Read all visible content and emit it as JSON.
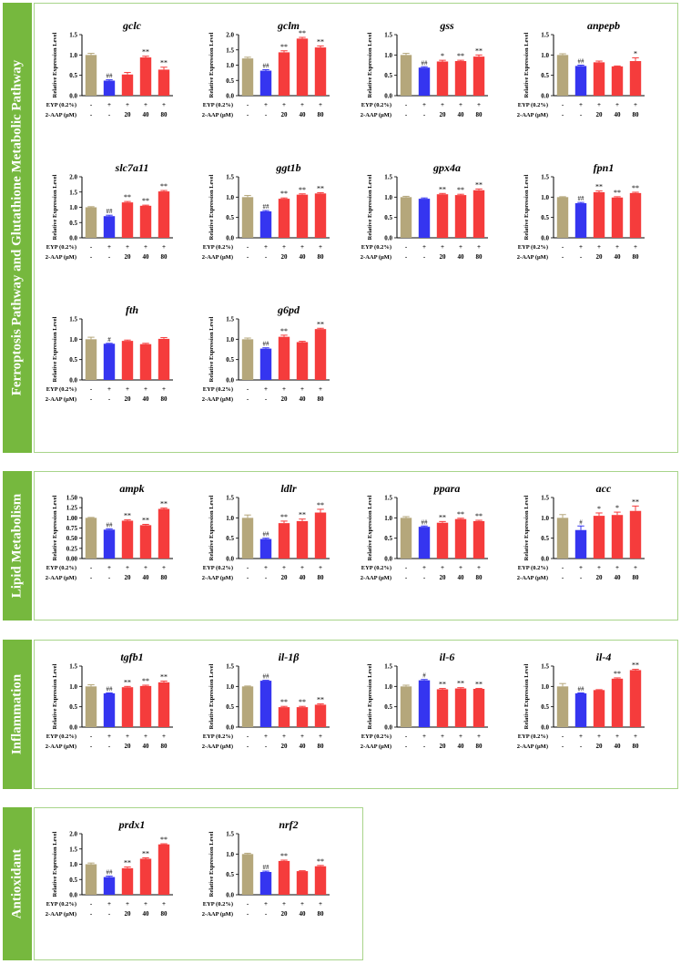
{
  "sections": [
    {
      "key": "ferro",
      "label": "Ferroptosis Pathway and Glutathione Metabolic Pathway"
    },
    {
      "key": "lipid",
      "label": "Lipid Metabolism"
    },
    {
      "key": "inflam",
      "label": "Inflammation"
    },
    {
      "key": "anti",
      "label": "Antioxidant"
    }
  ],
  "colors": {
    "control": "#b5a77b",
    "model": "#3535f0",
    "treat": "#f53c3c",
    "sidebar": "#76b83e",
    "frame": "#a8d48a"
  },
  "common": {
    "ylabel": "Relative Expression Level",
    "row1_label": "EYP (0.2%)",
    "row2_label": "2-AAP (μM)",
    "row1": [
      "-",
      "+",
      "+",
      "+",
      "+"
    ],
    "row2": [
      "-",
      "-",
      "20",
      "40",
      "80"
    ]
  },
  "chart_data": [
    {
      "type": "bar",
      "section": "ferro",
      "title": "gclc",
      "ylim": [
        0,
        1.5
      ],
      "yticks": [
        "0.0",
        "0.5",
        "1.0",
        "1.5"
      ],
      "values": [
        1.0,
        0.37,
        0.52,
        0.94,
        0.64
      ],
      "errors": [
        0.04,
        0.02,
        0.05,
        0.03,
        0.06
      ],
      "marks": [
        "",
        "##",
        "",
        "**",
        "**"
      ]
    },
    {
      "type": "bar",
      "section": "ferro",
      "title": "gclm",
      "ylim": [
        0,
        2.0
      ],
      "yticks": [
        "0.0",
        "0.5",
        "1.0",
        "1.5",
        "2.0"
      ],
      "values": [
        1.22,
        0.82,
        1.42,
        1.87,
        1.58
      ],
      "errors": [
        0.04,
        0.03,
        0.05,
        0.04,
        0.05
      ],
      "marks": [
        "",
        "##",
        "**",
        "**",
        "**"
      ]
    },
    {
      "type": "bar",
      "section": "ferro",
      "title": "gss",
      "ylim": [
        0,
        1.5
      ],
      "yticks": [
        "0.0",
        "0.5",
        "1.0",
        "1.5"
      ],
      "values": [
        1.0,
        0.69,
        0.84,
        0.85,
        0.96
      ],
      "errors": [
        0.04,
        0.02,
        0.03,
        0.02,
        0.04
      ],
      "marks": [
        "",
        "##",
        "*",
        "**",
        "**"
      ]
    },
    {
      "type": "bar",
      "section": "ferro",
      "title": "anpepb",
      "ylim": [
        0,
        1.5
      ],
      "yticks": [
        "0.0",
        "0.5",
        "1.0",
        "1.5"
      ],
      "values": [
        1.0,
        0.73,
        0.82,
        0.72,
        0.85
      ],
      "errors": [
        0.03,
        0.02,
        0.03,
        0.01,
        0.08
      ],
      "marks": [
        "",
        "##",
        "",
        "",
        "*"
      ]
    },
    {
      "type": "bar",
      "section": "ferro",
      "title": "slc7a11",
      "ylim": [
        0,
        2.0
      ],
      "yticks": [
        "0.0",
        "0.5",
        "1.0",
        "1.5",
        "2.0"
      ],
      "values": [
        1.0,
        0.71,
        1.16,
        1.05,
        1.52
      ],
      "errors": [
        0.02,
        0.03,
        0.03,
        0.02,
        0.03
      ],
      "marks": [
        "",
        "##",
        "**",
        "**",
        "**"
      ]
    },
    {
      "type": "bar",
      "section": "ferro",
      "title": "ggt1b",
      "ylim": [
        0,
        1.5
      ],
      "yticks": [
        "0.0",
        "0.5",
        "1.0",
        "1.5"
      ],
      "values": [
        1.0,
        0.65,
        0.96,
        1.06,
        1.09
      ],
      "errors": [
        0.04,
        0.02,
        0.02,
        0.02,
        0.02
      ],
      "marks": [
        "",
        "##",
        "**",
        "**",
        "**"
      ]
    },
    {
      "type": "bar",
      "section": "ferro",
      "title": "gpx4a",
      "ylim": [
        0,
        1.5
      ],
      "yticks": [
        "0.0",
        "0.5",
        "1.0",
        "1.5"
      ],
      "values": [
        1.0,
        0.96,
        1.07,
        1.05,
        1.17
      ],
      "errors": [
        0.02,
        0.02,
        0.02,
        0.02,
        0.03
      ],
      "marks": [
        "",
        "",
        "**",
        "**",
        "**"
      ]
    },
    {
      "type": "bar",
      "section": "ferro",
      "title": "fpn1",
      "ylim": [
        0,
        1.5
      ],
      "yticks": [
        "0.0",
        "0.5",
        "1.0",
        "1.5"
      ],
      "values": [
        1.0,
        0.85,
        1.12,
        0.99,
        1.1
      ],
      "errors": [
        0.01,
        0.02,
        0.03,
        0.02,
        0.02
      ],
      "marks": [
        "",
        "##",
        "**",
        "**",
        "**"
      ]
    },
    {
      "type": "bar",
      "section": "ferro",
      "title": "fth",
      "ylim": [
        0,
        1.5
      ],
      "yticks": [
        "0.0",
        "0.5",
        "1.0",
        "1.5"
      ],
      "values": [
        1.0,
        0.89,
        0.96,
        0.88,
        1.01
      ],
      "errors": [
        0.05,
        0.01,
        0.02,
        0.02,
        0.03
      ],
      "marks": [
        "",
        "#",
        "",
        "",
        ""
      ]
    },
    {
      "type": "bar",
      "section": "ferro",
      "title": "g6pd",
      "ylim": [
        0,
        1.5
      ],
      "yticks": [
        "0.0",
        "0.5",
        "1.0",
        "1.5"
      ],
      "values": [
        1.0,
        0.77,
        1.06,
        0.93,
        1.25
      ],
      "errors": [
        0.03,
        0.02,
        0.04,
        0.02,
        0.02
      ],
      "marks": [
        "",
        "##",
        "**",
        "",
        "**"
      ]
    },
    {
      "type": "bar",
      "section": "lipid",
      "title": "ampk",
      "ylim": [
        0,
        1.5
      ],
      "yticks": [
        "0.00",
        "0.25",
        "0.50",
        "0.75",
        "1.00",
        "1.25",
        "1.50"
      ],
      "values": [
        1.0,
        0.71,
        0.93,
        0.82,
        1.22
      ],
      "errors": [
        0.01,
        0.02,
        0.02,
        0.02,
        0.02
      ],
      "marks": [
        "",
        "##",
        "**",
        "**",
        "**"
      ]
    },
    {
      "type": "bar",
      "section": "lipid",
      "title": "ldlr",
      "ylim": [
        0,
        1.5
      ],
      "yticks": [
        "0.0",
        "0.5",
        "1.0",
        "1.5"
      ],
      "values": [
        1.0,
        0.48,
        0.87,
        0.92,
        1.13
      ],
      "errors": [
        0.07,
        0.02,
        0.05,
        0.05,
        0.08
      ],
      "marks": [
        "",
        "##",
        "**",
        "**",
        "**"
      ]
    },
    {
      "type": "bar",
      "section": "lipid",
      "title": "ppara",
      "ylim": [
        0,
        1.5
      ],
      "yticks": [
        "0.0",
        "0.5",
        "1.0",
        "1.5"
      ],
      "values": [
        1.0,
        0.78,
        0.88,
        0.97,
        0.92
      ],
      "errors": [
        0.03,
        0.02,
        0.03,
        0.02,
        0.02
      ],
      "marks": [
        "",
        "##",
        "**",
        "**",
        "**"
      ]
    },
    {
      "type": "bar",
      "section": "lipid",
      "title": "acc",
      "ylim": [
        0,
        1.5
      ],
      "yticks": [
        "0.0",
        "0.5",
        "1.0",
        "1.5"
      ],
      "values": [
        1.0,
        0.7,
        1.05,
        1.07,
        1.17
      ],
      "errors": [
        0.08,
        0.1,
        0.07,
        0.07,
        0.12
      ],
      "marks": [
        "",
        "#",
        "*",
        "*",
        "**"
      ]
    },
    {
      "type": "bar",
      "section": "inflam",
      "title": "tgfb1",
      "ylim": [
        0,
        1.5
      ],
      "yticks": [
        "0.0",
        "0.5",
        "1.0",
        "1.5"
      ],
      "values": [
        1.0,
        0.83,
        0.98,
        1.01,
        1.1
      ],
      "errors": [
        0.04,
        0.01,
        0.02,
        0.02,
        0.03
      ],
      "marks": [
        "",
        "##",
        "**",
        "**",
        "**"
      ]
    },
    {
      "type": "bar",
      "section": "inflam",
      "title": "il-1β",
      "ylim": [
        0,
        1.5
      ],
      "yticks": [
        "0.0",
        "0.5",
        "1.0",
        "1.5"
      ],
      "values": [
        1.0,
        1.14,
        0.49,
        0.49,
        0.55
      ],
      "errors": [
        0.01,
        0.01,
        0.02,
        0.02,
        0.02
      ],
      "marks": [
        "",
        "##",
        "**",
        "**",
        "**"
      ]
    },
    {
      "type": "bar",
      "section": "inflam",
      "title": "il-6",
      "ylim": [
        0,
        1.5
      ],
      "yticks": [
        "0.0",
        "0.5",
        "1.0",
        "1.5"
      ],
      "values": [
        1.0,
        1.15,
        0.93,
        0.95,
        0.94
      ],
      "errors": [
        0.03,
        0.02,
        0.02,
        0.02,
        0.01
      ],
      "marks": [
        "",
        "#",
        "**",
        "**",
        "**"
      ]
    },
    {
      "type": "bar",
      "section": "inflam",
      "title": "il-4",
      "ylim": [
        0,
        1.5
      ],
      "yticks": [
        "0.0",
        "0.5",
        "1.0",
        "1.5"
      ],
      "values": [
        1.0,
        0.83,
        0.91,
        1.19,
        1.4
      ],
      "errors": [
        0.07,
        0.01,
        0.01,
        0.02,
        0.02
      ],
      "marks": [
        "",
        "##",
        "",
        "**",
        "**"
      ]
    },
    {
      "type": "bar",
      "section": "anti",
      "title": "prdx1",
      "ylim": [
        0,
        2.0
      ],
      "yticks": [
        "0.0",
        "0.5",
        "1.0",
        "1.5",
        "2.0"
      ],
      "values": [
        1.0,
        0.58,
        0.87,
        1.18,
        1.65
      ],
      "errors": [
        0.04,
        0.03,
        0.04,
        0.03,
        0.02
      ],
      "marks": [
        "",
        "##",
        "**",
        "**",
        "**"
      ]
    },
    {
      "type": "bar",
      "section": "anti",
      "title": "nrf2",
      "ylim": [
        0,
        1.5
      ],
      "yticks": [
        "0.0",
        "0.5",
        "1.0",
        "1.5"
      ],
      "values": [
        1.0,
        0.56,
        0.83,
        0.58,
        0.7
      ],
      "errors": [
        0.02,
        0.02,
        0.02,
        0.01,
        0.02
      ],
      "marks": [
        "",
        "##",
        "**",
        "",
        "**"
      ]
    }
  ]
}
